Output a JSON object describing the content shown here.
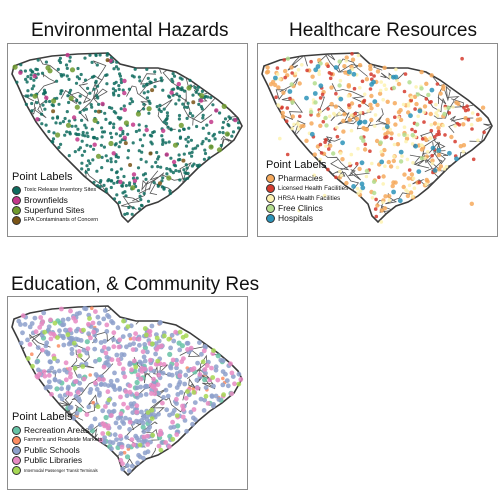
{
  "panels": [
    {
      "title": "Environmental Hazards",
      "legend_title": "Point Labels",
      "items": [
        {
          "label": "Toxic Release Inventory Sites",
          "color": "#0e6b5e",
          "size": "small"
        },
        {
          "label": "Brownfields",
          "color": "#c2378a",
          "size": "large"
        },
        {
          "label": "Superfund Sites",
          "color": "#6f9a2e",
          "size": "large"
        },
        {
          "label": "EPA Contaminants of Concern",
          "color": "#7a5416",
          "size": "small"
        }
      ]
    },
    {
      "title": "Healthcare Resources",
      "legend_title": "Point Labels",
      "items": [
        {
          "label": "Pharmacies",
          "color": "#f6a95c",
          "size": "large"
        },
        {
          "label": "Licensed Health Facilities",
          "color": "#d53b2e",
          "size": "medium"
        },
        {
          "label": "HRSA Health Facilities",
          "color": "#fdf2b0",
          "size": "medium"
        },
        {
          "label": "Free Clinics",
          "color": "#b3dd8e",
          "size": "large"
        },
        {
          "label": "Hospitals",
          "color": "#2c93b8",
          "size": "large"
        }
      ]
    },
    {
      "title": "Education, & Community Res",
      "legend_title": "Point Labels",
      "items": [
        {
          "label": "Recreation Areas",
          "color": "#66c2a5",
          "size": "large"
        },
        {
          "label": "Farmer's and Roadside Markets",
          "color": "#fc8d62",
          "size": "small"
        },
        {
          "label": "Public Schools",
          "color": "#8da0cb",
          "size": "large"
        },
        {
          "label": "Public Libraries",
          "color": "#e78ac3",
          "size": "large"
        },
        {
          "label": "Intermodal Passenger Transit Terminals",
          "color": "#a6d854",
          "size": "tiny"
        }
      ]
    }
  ]
}
